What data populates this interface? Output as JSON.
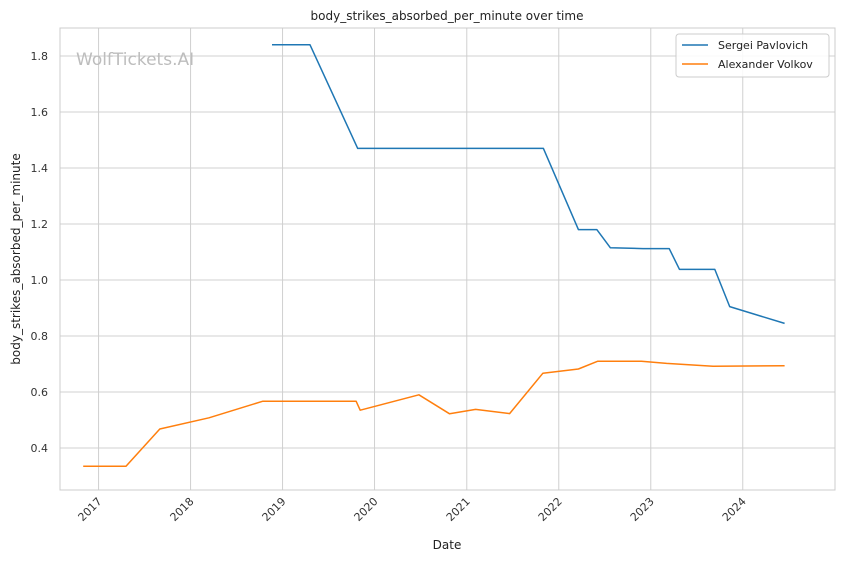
{
  "chart_data": {
    "type": "line",
    "title": "body_strikes_absorbed_per_minute over time",
    "xlabel": "Date",
    "ylabel": "body_strikes_absorbed_per_minute",
    "watermark": "WolfTickets.AI",
    "xlim": [
      "2016-08-01",
      "2025-01-01"
    ],
    "ylim": [
      0.25,
      1.9
    ],
    "x_ticks": [
      "2017-01-01",
      "2018-01-01",
      "2019-01-01",
      "2020-01-01",
      "2021-01-01",
      "2022-01-01",
      "2023-01-01",
      "2024-01-01"
    ],
    "x_tick_labels": [
      "2017",
      "2018",
      "2019",
      "2020",
      "2021",
      "2022",
      "2023",
      "2024"
    ],
    "y_ticks": [
      0.4,
      0.6,
      0.8,
      1.0,
      1.2,
      1.4,
      1.6,
      1.8
    ],
    "y_tick_labels": [
      "0.4",
      "0.6",
      "0.8",
      "1.0",
      "1.2",
      "1.4",
      "1.6",
      "1.8"
    ],
    "grid": true,
    "legend_position": "top-right",
    "series": [
      {
        "name": "Sergei Pavlovich",
        "color": "#1f77b4",
        "points": [
          {
            "x": "2018-11-20",
            "y": 1.84
          },
          {
            "x": "2019-04-20",
            "y": 1.84
          },
          {
            "x": "2019-10-26",
            "y": 1.47
          },
          {
            "x": "2021-11-01",
            "y": 1.47
          },
          {
            "x": "2022-03-20",
            "y": 1.18
          },
          {
            "x": "2022-06-01",
            "y": 1.18
          },
          {
            "x": "2022-07-25",
            "y": 1.115
          },
          {
            "x": "2022-12-01",
            "y": 1.112
          },
          {
            "x": "2023-03-15",
            "y": 1.112
          },
          {
            "x": "2023-04-25",
            "y": 1.038
          },
          {
            "x": "2023-09-12",
            "y": 1.038
          },
          {
            "x": "2023-11-10",
            "y": 0.905
          },
          {
            "x": "2024-06-15",
            "y": 0.845
          }
        ]
      },
      {
        "name": "Alexander Volkov",
        "color": "#ff7f0e",
        "points": [
          {
            "x": "2016-11-01",
            "y": 0.335
          },
          {
            "x": "2017-04-20",
            "y": 0.335
          },
          {
            "x": "2017-09-01",
            "y": 0.468
          },
          {
            "x": "2018-03-15",
            "y": 0.508
          },
          {
            "x": "2018-10-15",
            "y": 0.567
          },
          {
            "x": "2019-10-20",
            "y": 0.567
          },
          {
            "x": "2019-11-05",
            "y": 0.535
          },
          {
            "x": "2020-06-25",
            "y": 0.59
          },
          {
            "x": "2020-10-25",
            "y": 0.522
          },
          {
            "x": "2021-02-05",
            "y": 0.538
          },
          {
            "x": "2021-06-20",
            "y": 0.523
          },
          {
            "x": "2021-10-30",
            "y": 0.667
          },
          {
            "x": "2022-03-20",
            "y": 0.682
          },
          {
            "x": "2022-06-05",
            "y": 0.71
          },
          {
            "x": "2022-11-25",
            "y": 0.71
          },
          {
            "x": "2023-03-05",
            "y": 0.702
          },
          {
            "x": "2023-09-05",
            "y": 0.692
          },
          {
            "x": "2024-06-15",
            "y": 0.694
          }
        ]
      }
    ]
  }
}
